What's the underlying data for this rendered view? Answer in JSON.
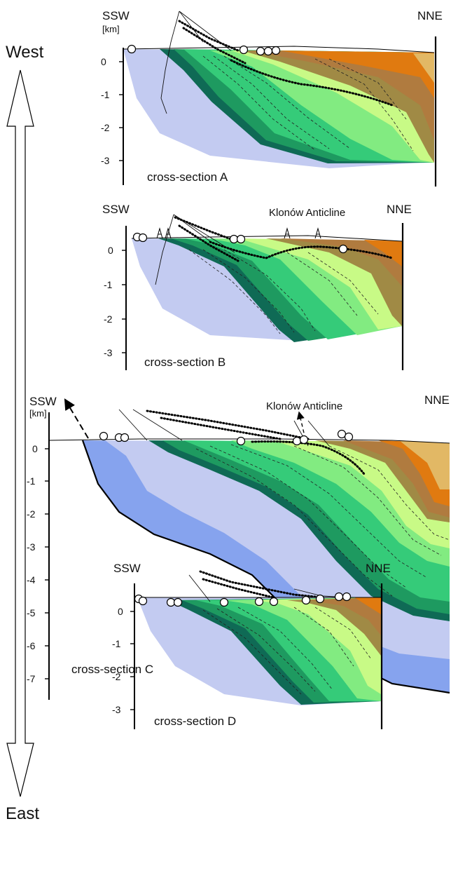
{
  "orientation": {
    "top": "West",
    "bottom": "East"
  },
  "sections": [
    {
      "id": "A",
      "caption": "cross-section A",
      "left_label": "SSW",
      "right_label": "NNE",
      "unit": "[km]",
      "ticks": [
        "0",
        "-1",
        "-2",
        "-3"
      ],
      "annotation": ""
    },
    {
      "id": "B",
      "caption": "cross-section B",
      "left_label": "SSW",
      "right_label": "NNE",
      "unit": "",
      "ticks": [
        "0",
        "-1",
        "-2",
        "-3"
      ],
      "annotation": "Klonów Anticline"
    },
    {
      "id": "C",
      "caption": "cross-section C",
      "left_label": "SSW",
      "right_label": "NNE",
      "unit": "[km]",
      "ticks": [
        "0",
        "-1",
        "-2",
        "-3",
        "-4",
        "-5",
        "-6",
        "-7"
      ],
      "annotation": "Klonów Anticline"
    },
    {
      "id": "D",
      "caption": "cross-section D",
      "left_label": "SSW",
      "right_label": "NNE",
      "unit": "",
      "ticks": [
        "0",
        "-1",
        "-2",
        "-3"
      ],
      "annotation": ""
    }
  ],
  "colors": {
    "basement_pale": "#c3cbf1",
    "basement_blue": "#86a3ee",
    "green_dark": "#0f6a55",
    "green_mid": "#1e9a60",
    "green_bright": "#35cb79",
    "green_light": "#82eb81",
    "green_pale": "#c8fa86",
    "olive": "#a08a45",
    "brown": "#b07b3f",
    "orange": "#e07a10",
    "tan": "#e2b865"
  }
}
